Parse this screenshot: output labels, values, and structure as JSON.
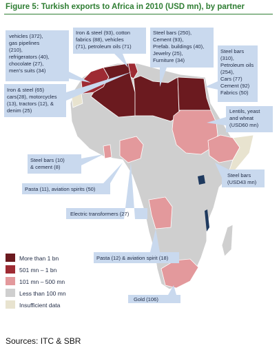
{
  "title": "Figure 5: Turkish exports to Africa in 2010 (USD mn), by partner",
  "source": "Sources: ITC & SBR",
  "colors": {
    "more_than_1bn": "#6b1a1f",
    "501mn_1bn": "#9e2b33",
    "101_500mn": "#e3999c",
    "less_than_100mn": "#cfcfcf",
    "insufficient": "#e8e3cf",
    "callout": "#c9d9ee"
  },
  "legend": [
    {
      "label": "More than 1 bn",
      "color_key": "more_than_1bn"
    },
    {
      "label": "501 mn – 1 bn",
      "color_key": "501mn_1bn"
    },
    {
      "label": "101 mn – 500 mn",
      "color_key": "101_500mn"
    },
    {
      "label": "Less than 100 mn",
      "color_key": "less_than_100mn"
    },
    {
      "label": "Insufficient data",
      "color_key": "insufficient"
    }
  ],
  "callouts": {
    "morocco": [
      "vehicles (372),",
      "gas pipelines",
      "(210),",
      "refrigerators (40),",
      "chocolate (27),",
      "men's suits (34)"
    ],
    "algeria": [
      "Iron & steel (93), cotton",
      "fabrics (88), vehicles",
      "(71), petroleum oils (71)"
    ],
    "libya": [
      "Steel bars (250),",
      "Cement (93),",
      "Prefab. buildings (40),",
      "Jewelry (25),",
      "Furniture (34)"
    ],
    "egypt": [
      "Steel bars",
      "(310),",
      "Petroleum oils",
      "(254),",
      "Cars (77)",
      "Cement (92)",
      "Fabrics (50)"
    ],
    "tunisia": [
      "Iron & steel (65)",
      "cars(28), motorcycles",
      "(13), tractors (12), &",
      "denim (25)"
    ],
    "sudan": [
      "Lentils, yeast",
      "and wheat",
      "(USD60 mn)"
    ],
    "ghana": [
      "Steel bars (10)",
      "& cement (8)"
    ],
    "ethiopia": [
      "Steel bars",
      "(USD43 mn)"
    ],
    "nigeria": [
      "Pasta (11), aviation spirits (50)"
    ],
    "cameroon": [
      "Electric transformers (27)"
    ],
    "angola": [
      "Pasta (12) & aviation spirit (18)"
    ],
    "south_africa": [
      "Gold (106)"
    ]
  }
}
